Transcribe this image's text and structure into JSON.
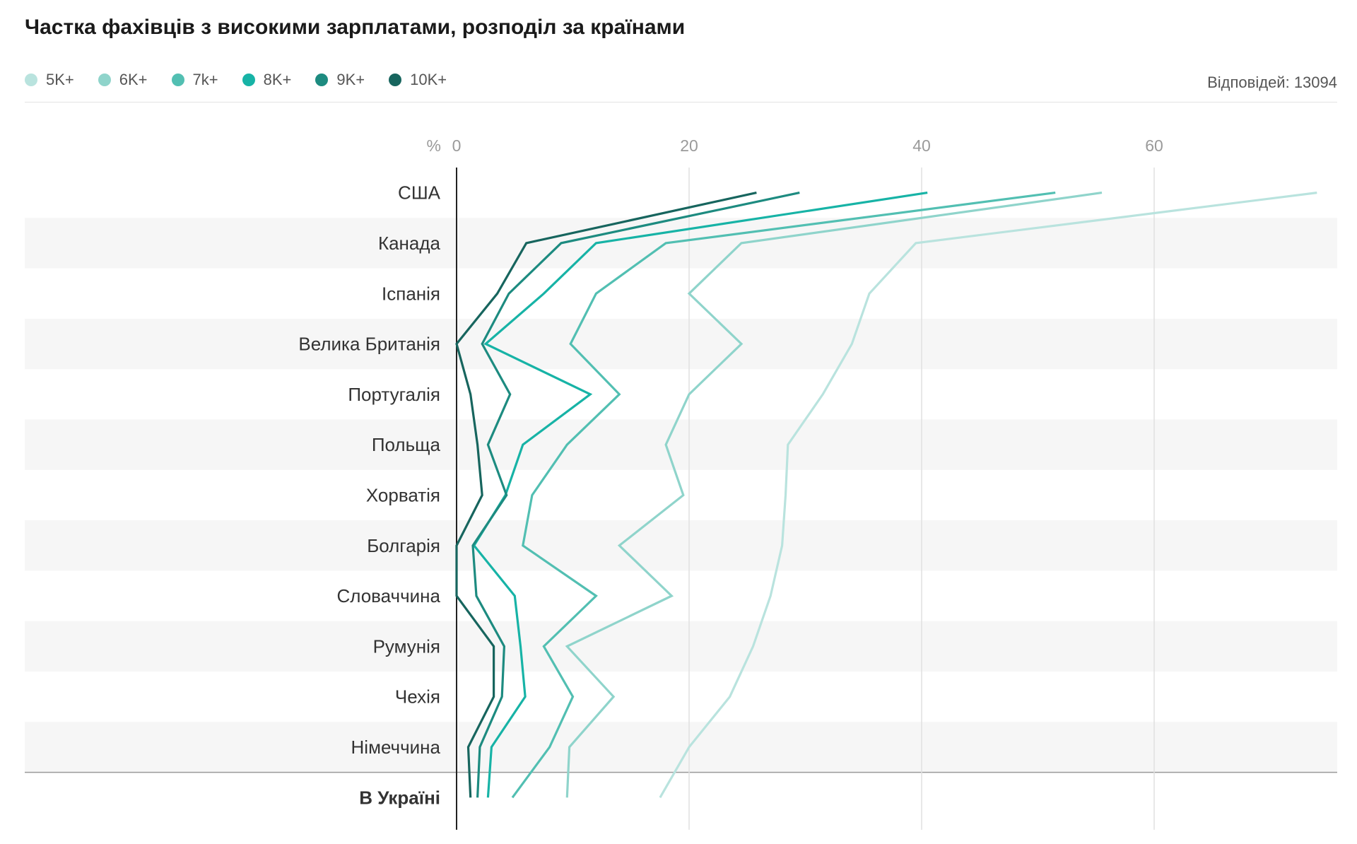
{
  "title": "Частка фахівців з високими зарплатами, розподіл за країнами",
  "responses": "Відповідей: 13094",
  "chart_data": {
    "type": "line",
    "orientation": "horizontal",
    "axis_unit": "%",
    "xlim": [
      0,
      76
    ],
    "x_ticks": [
      0,
      20,
      40,
      60
    ],
    "categories": [
      "США",
      "Канада",
      "Іспанія",
      "Велика Британія",
      "Португалія",
      "Польща",
      "Хорватія",
      "Болгарія",
      "Словаччина",
      "Румунія",
      "Чехія",
      "Німеччина",
      "В Україні"
    ],
    "category_bold": [
      false,
      false,
      false,
      false,
      false,
      false,
      false,
      false,
      false,
      false,
      false,
      false,
      true
    ],
    "series": [
      {
        "name": "5K+",
        "color": "#b9e3de",
        "values": [
          74.0,
          39.5,
          35.5,
          34.0,
          31.5,
          28.5,
          28.3,
          28.0,
          27.0,
          25.5,
          23.5,
          20.0,
          17.5
        ]
      },
      {
        "name": "6K+",
        "color": "#8fd4cb",
        "values": [
          55.5,
          24.5,
          20.0,
          24.5,
          20.0,
          18.0,
          19.5,
          14.0,
          18.5,
          9.5,
          13.5,
          9.7,
          9.5
        ]
      },
      {
        "name": "7k+",
        "color": "#52bfb2",
        "values": [
          51.5,
          18.0,
          12.0,
          9.8,
          14.0,
          9.5,
          6.5,
          5.7,
          12.0,
          7.5,
          10.0,
          8.0,
          4.8
        ]
      },
      {
        "name": "8K+",
        "color": "#17b3a6",
        "values": [
          40.5,
          12.0,
          7.5,
          2.5,
          11.5,
          5.7,
          4.2,
          1.5,
          5.0,
          5.5,
          5.9,
          3.0,
          2.7
        ]
      },
      {
        "name": "9K+",
        "color": "#1d8b80",
        "values": [
          29.5,
          9.0,
          4.5,
          2.2,
          4.6,
          2.7,
          4.3,
          1.4,
          1.7,
          4.1,
          3.9,
          2.0,
          1.8
        ]
      },
      {
        "name": "10K+",
        "color": "#17655e",
        "values": [
          25.8,
          6.0,
          3.5,
          0,
          1.2,
          1.8,
          2.2,
          0,
          0,
          3.2,
          3.2,
          1.0,
          1.2
        ]
      }
    ]
  }
}
